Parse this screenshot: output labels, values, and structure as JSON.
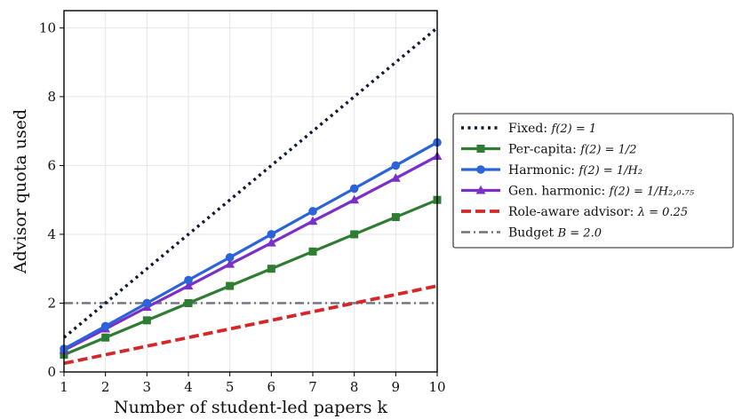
{
  "chart_data": {
    "type": "line",
    "xlabel": "Number of student-led papers k",
    "ylabel": "Advisor quota used",
    "xlim": [
      1,
      10
    ],
    "ylim": [
      0,
      10.5
    ],
    "xticks": [
      1,
      2,
      3,
      4,
      5,
      6,
      7,
      8,
      9,
      10
    ],
    "yticks": [
      0,
      2,
      4,
      6,
      8,
      10
    ],
    "grid": true,
    "legend_position": "right",
    "x": [
      1,
      2,
      3,
      4,
      5,
      6,
      7,
      8,
      9,
      10
    ],
    "series": [
      {
        "name": "Fixed:",
        "math": "f(2) = 1",
        "color": "#111a33",
        "style": "dotted",
        "marker": "none",
        "values": [
          1,
          2,
          3,
          4,
          5,
          6,
          7,
          8,
          9,
          10
        ]
      },
      {
        "name": "Per-capita:",
        "math": "f(2) = 1/2",
        "color": "#2e7d32",
        "style": "solid",
        "marker": "square",
        "values": [
          0.5,
          1.0,
          1.5,
          2.0,
          2.5,
          3.0,
          3.5,
          4.0,
          4.5,
          5.0
        ]
      },
      {
        "name": "Harmonic:",
        "math": "f(2) = 1/H₂",
        "color": "#2b63d9",
        "style": "solid",
        "marker": "circle",
        "values": [
          0.67,
          1.33,
          2.0,
          2.67,
          3.33,
          4.0,
          4.67,
          5.33,
          6.0,
          6.67
        ]
      },
      {
        "name": "Gen. harmonic:",
        "math": "f(2) = 1/H₂,₀.₇₅",
        "color": "#7b2fc9",
        "style": "solid",
        "marker": "triangle",
        "values": [
          0.63,
          1.25,
          1.88,
          2.5,
          3.13,
          3.75,
          4.38,
          5.0,
          5.63,
          6.27
        ]
      },
      {
        "name": "Role-aware advisor:",
        "math": "λ = 0.25",
        "color": "#d62728",
        "style": "dashed",
        "marker": "none",
        "values": [
          0.25,
          0.5,
          0.75,
          1.0,
          1.25,
          1.5,
          1.75,
          2.0,
          2.25,
          2.5
        ]
      },
      {
        "name": "Budget",
        "math": "B = 2.0",
        "color": "#6b7280",
        "style": "dashdot",
        "marker": "none",
        "values": [
          2,
          2,
          2,
          2,
          2,
          2,
          2,
          2,
          2,
          2
        ]
      }
    ]
  }
}
